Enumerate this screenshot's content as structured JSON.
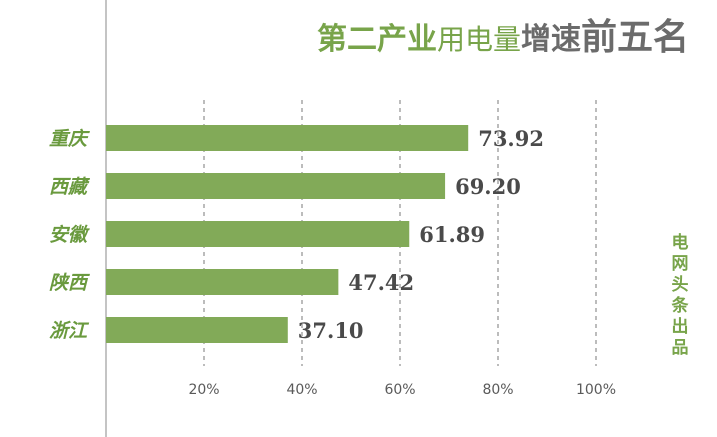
{
  "title": {
    "part1": "第二产业",
    "part2": "用电量",
    "part3": "增速",
    "part4": "前五名"
  },
  "credit": "电网头条出品",
  "colors": {
    "bar": "#82aa58",
    "accent": "#78a44a",
    "label": "#6a9a3e",
    "value": "#4a4a4a",
    "grid": "#7a7a7a",
    "axis": "#8a8a8a",
    "tick": "#5a5a5a"
  },
  "chart_data": {
    "type": "bar",
    "orientation": "horizontal",
    "title": "第二产业用电量增速前五名",
    "categories": [
      "重庆",
      "西藏",
      "安徽",
      "陕西",
      "浙江"
    ],
    "values": [
      73.92,
      69.2,
      61.89,
      47.42,
      37.1
    ],
    "value_labels": [
      "73.92",
      "69.20",
      "61.89",
      "47.42",
      "37.10"
    ],
    "xlim": [
      0,
      100
    ],
    "xticks": [
      20,
      40,
      60,
      80,
      100
    ],
    "xtick_labels": [
      "20%",
      "40%",
      "60%",
      "80%",
      "100%"
    ],
    "grid": true,
    "grid_style": "dashed vertical"
  }
}
